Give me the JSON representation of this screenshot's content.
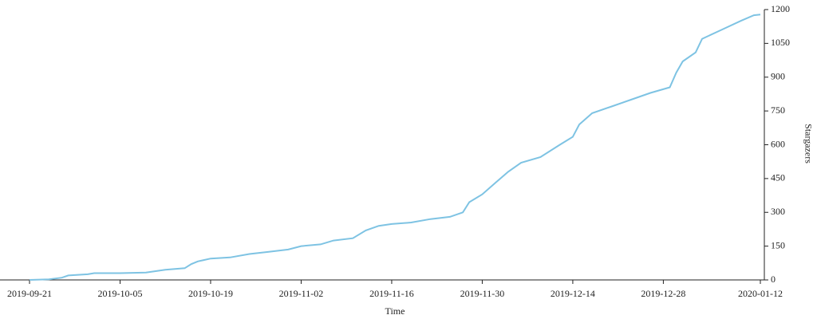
{
  "chart_data": {
    "type": "line",
    "x_label": "Time",
    "y_label": "Stargazers",
    "x": [
      "2019-09-21",
      "2019-09-24",
      "2019-09-26",
      "2019-09-27",
      "2019-09-30",
      "2019-10-01",
      "2019-10-05",
      "2019-10-09",
      "2019-10-12",
      "2019-10-15",
      "2019-10-16",
      "2019-10-17",
      "2019-10-19",
      "2019-10-22",
      "2019-10-25",
      "2019-10-28",
      "2019-10-31",
      "2019-11-02",
      "2019-11-05",
      "2019-11-07",
      "2019-11-10",
      "2019-11-12",
      "2019-11-14",
      "2019-11-16",
      "2019-11-19",
      "2019-11-22",
      "2019-11-25",
      "2019-11-27",
      "2019-11-28",
      "2019-11-30",
      "2019-12-02",
      "2019-12-04",
      "2019-12-06",
      "2019-12-09",
      "2019-12-12",
      "2019-12-14",
      "2019-12-15",
      "2019-12-17",
      "2019-12-20",
      "2019-12-23",
      "2019-12-26",
      "2019-12-29",
      "2019-12-30",
      "2019-12-31",
      "2020-01-02",
      "2020-01-03",
      "2020-01-06",
      "2020-01-09",
      "2020-01-11",
      "2020-01-12"
    ],
    "series": [
      {
        "name": "Stargazers",
        "color": "#7ec3e3",
        "values": [
          0,
          3,
          10,
          20,
          25,
          30,
          30,
          33,
          45,
          52,
          70,
          82,
          95,
          100,
          115,
          125,
          135,
          150,
          158,
          175,
          185,
          220,
          240,
          248,
          255,
          270,
          280,
          300,
          345,
          380,
          430,
          480,
          520,
          545,
          600,
          635,
          690,
          740,
          770,
          800,
          830,
          855,
          920,
          970,
          1010,
          1070,
          1110,
          1150,
          1175,
          1178
        ]
      }
    ],
    "xlim": [
      "2019-09-21",
      "2020-01-12"
    ],
    "xticks": [
      "2019-09-21",
      "2019-10-05",
      "2019-10-19",
      "2019-11-02",
      "2019-11-16",
      "2019-11-30",
      "2019-12-14",
      "2019-12-28",
      "2020-01-12"
    ],
    "ylim": [
      0,
      1200
    ],
    "yticks": [
      0,
      150,
      300,
      450,
      600,
      750,
      900,
      1050,
      1200
    ],
    "y_axis_side": "right"
  }
}
